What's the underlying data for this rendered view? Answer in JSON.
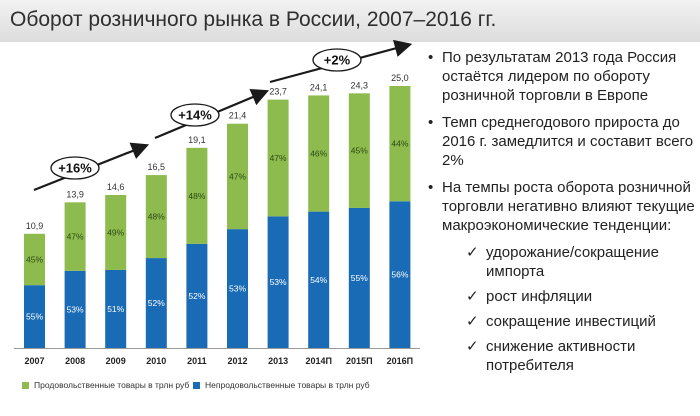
{
  "title": "Оборот розничного рынка в России, 2007–2016 гг.",
  "chart_data": {
    "type": "bar",
    "stacked": true,
    "categories": [
      "2007",
      "2008",
      "2009",
      "2010",
      "2011",
      "2012",
      "2013",
      "2014П",
      "2015П",
      "2016П"
    ],
    "totals": [
      "10,9",
      "13,9",
      "14,6",
      "16,5",
      "19,1",
      "21,4",
      "23,7",
      "24,1",
      "24,3",
      "25,0"
    ],
    "total_values": [
      10.9,
      13.9,
      14.6,
      16.5,
      19.1,
      21.4,
      23.7,
      24.1,
      24.3,
      25.0
    ],
    "series": [
      {
        "name": "Непродовольственные товары в трлн руб",
        "color": "#1a6bb5",
        "share_labels": [
          "55%",
          "53%",
          "51%",
          "52%",
          "52%",
          "53%",
          "53%",
          "54%",
          "55%",
          "56%"
        ],
        "share": [
          55,
          53,
          51,
          52,
          52,
          53,
          53,
          54,
          55,
          56
        ]
      },
      {
        "name": "Продовольственные товары  в трлн руб",
        "color": "#8dbb4e",
        "share_labels": [
          "45%",
          "47%",
          "49%",
          "48%",
          "48%",
          "47%",
          "47%",
          "46%",
          "45%",
          "44%"
        ],
        "share": [
          45,
          47,
          49,
          48,
          48,
          47,
          47,
          46,
          45,
          44
        ]
      }
    ],
    "ylim": [
      0,
      25
    ],
    "annotations": [
      "+16%",
      "+14%",
      "+2%"
    ]
  },
  "bullets": [
    "По результатам 2013 года Россия остаётся лидером по обороту розничной торговли в Европе",
    "Темп среднегодового прироста до 2016 г. замедлится и составит всего 2%",
    "На темпы роста оборота розничной торговли негативно влияют текущие макроэкономические тенденции:"
  ],
  "sub_bullets": [
    "удорожание/сокращение импорта",
    "рост инфляции",
    "сокращение инвестиций",
    "снижение активности потребителя"
  ],
  "bullet_marker": "•",
  "check_marker": "✓",
  "legend": {
    "food": "Продовольственные товары  в трлн руб",
    "nonfood": "Непродовольственные товары  в трлн руб"
  }
}
